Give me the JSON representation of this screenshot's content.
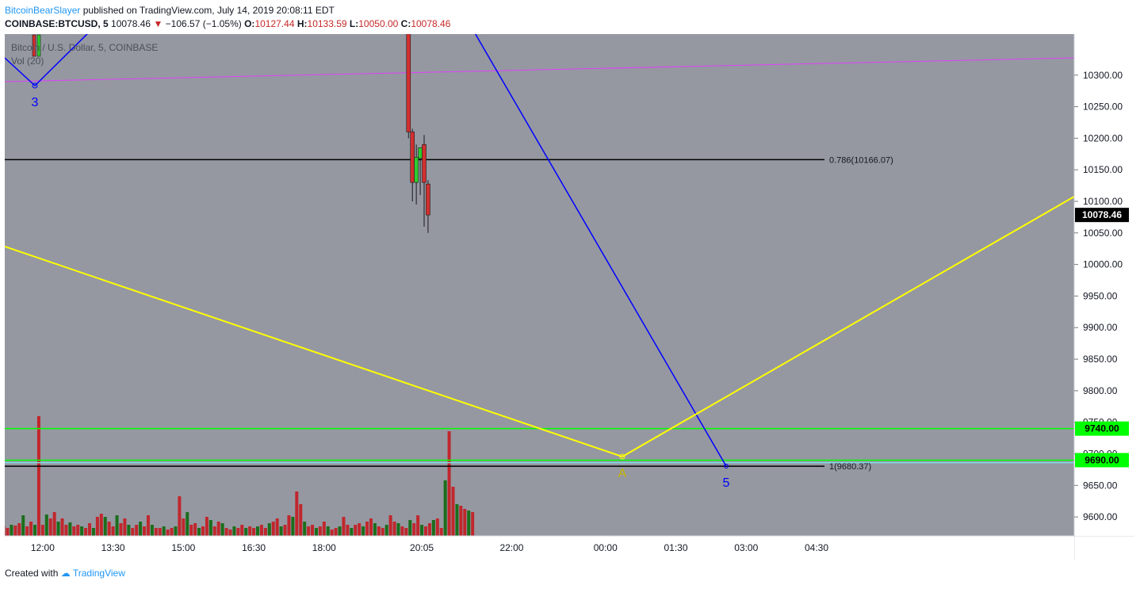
{
  "header": {
    "author": "BitcoinBearSlayer",
    "published_text": "published on TradingView.com, July 14, 2019 20:08:11 EDT",
    "symbol": "COINBASE:BTCUSD, 5",
    "last": "10078.46",
    "change_arrow": "▼",
    "change": "−106.57 (−1.05%)",
    "open_label": "O:",
    "open": "10127.44",
    "high_label": "H:",
    "high": "10133.59",
    "low_label": "L:",
    "low": "10050.00",
    "close_label": "C:",
    "close": "10078.46"
  },
  "legend": {
    "series_title": "Bitcoin / U.S. Dollar, 5, COINBASE",
    "volume_title": "Vol (20)"
  },
  "footer": {
    "created_with": "Created with",
    "brand": "TradingView"
  },
  "colors": {
    "pane_bg": "#9598a1",
    "up": "#2ecc2e",
    "down": "#d32f2f",
    "vol_up": "#1b6e1b",
    "vol_down": "#c0272d",
    "fib": "#000000",
    "wave": "#0000ff",
    "abc": "#ffff00",
    "channel": "#e040fb",
    "support": "#00ff00",
    "cyan": "#80deea",
    "last_price_bg": "#000000"
  },
  "chart_data": {
    "type": "candlestick",
    "symbol": "COINBASE:BTCUSD",
    "interval": "5",
    "ylim": [
      9570,
      10365
    ],
    "y_ticks": [
      10300,
      10250,
      10200,
      10150,
      10100,
      10050,
      10000,
      9950,
      9900,
      9850,
      9800,
      9750,
      9700,
      9650,
      9600
    ],
    "x_ticks": [
      "12:00",
      "13:30",
      "15:00",
      "16:30",
      "18:00",
      "20:05",
      "22:00",
      "00:00",
      "01:30",
      "03:00",
      "04:30"
    ],
    "last_price": 10078.46,
    "price_tags": [
      10078.46,
      9740.0,
      9690.0
    ],
    "fib_levels": [
      {
        "label": "0.786(10166.07)",
        "value": 10166.07
      },
      {
        "label": "1(9680.37)",
        "value": 9680.37
      }
    ],
    "horizontal_levels": [
      9740.0,
      9690.0,
      9686.0
    ],
    "wave_labels": [
      {
        "label": "3",
        "time": "11:50",
        "value": 10264
      },
      {
        "label": "A",
        "time": "21:40",
        "value": 9680
      },
      {
        "label": "5",
        "time": "23:30",
        "value": 9666
      }
    ],
    "candles": [
      {
        "t": "19:50",
        "o": 10390,
        "h": 10410,
        "l": 10200,
        "c": 10210
      },
      {
        "t": "19:55",
        "o": 10210,
        "h": 10215,
        "l": 10100,
        "c": 10130
      },
      {
        "t": "20:00",
        "o": 10130,
        "h": 10190,
        "l": 10095,
        "c": 10170
      },
      {
        "t": "20:05",
        "o": 10168,
        "h": 10185,
        "l": 10110,
        "c": 10185
      },
      {
        "t": "20:10",
        "o": 10190,
        "h": 10205,
        "l": 10060,
        "c": 10130
      },
      {
        "t": "20:15",
        "o": 10127.44,
        "h": 10133.59,
        "l": 10050.0,
        "c": 10078.46
      }
    ],
    "volume": {
      "up_color": "green",
      "down_color": "red",
      "note": "approximate relative heights",
      "values": [
        22,
        12,
        10,
        14,
        13,
        16,
        26,
        12,
        18,
        14,
        151,
        14,
        27,
        22,
        30,
        18,
        22,
        14,
        17,
        12,
        14,
        12,
        10,
        16,
        10,
        24,
        28,
        24,
        18,
        12,
        26,
        16,
        22,
        14,
        10,
        14,
        18,
        12,
        26,
        14,
        10,
        10,
        12,
        8,
        10,
        12,
        50,
        22,
        30,
        14,
        16,
        10,
        12,
        24,
        20,
        12,
        18,
        16,
        10,
        8,
        12,
        10,
        14,
        10,
        12,
        10,
        12,
        14,
        10,
        16,
        18,
        22,
        12,
        14,
        26,
        24,
        56,
        40,
        18,
        12,
        14,
        10,
        12,
        18,
        12,
        8,
        10,
        12,
        24,
        14,
        10,
        14,
        16,
        12,
        18,
        22,
        16,
        12,
        10,
        14,
        26,
        18,
        16,
        12,
        10,
        20,
        16,
        26,
        14,
        12,
        16,
        20,
        22,
        10,
        70,
        132,
        62,
        40,
        38,
        34,
        32,
        30
      ]
    }
  }
}
